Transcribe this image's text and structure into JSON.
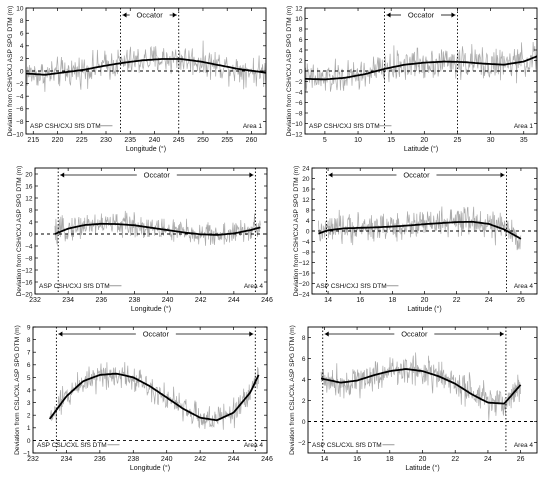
{
  "chart_data": [
    {
      "type": "line",
      "panel": "top-left",
      "ylabel": "Deviation from CSH/CXJ ASP SPG DTM (m)",
      "xlabel": "Longitude (°)",
      "xlim": [
        213.5,
        263
      ],
      "ylim": [
        -10,
        10
      ],
      "xticks": [
        215,
        220,
        225,
        230,
        235,
        240,
        245,
        250,
        255,
        260
      ],
      "yticks": [
        -10,
        -8,
        -6,
        -4,
        -2,
        0,
        2,
        4,
        6,
        8,
        10
      ],
      "occator": {
        "label": "Occator",
        "start": 233,
        "end": 245
      },
      "area_label": "Area 1",
      "series": [
        {
          "name": "ASP CSH/CXJ SfS DTM",
          "color": "#aaaaaa",
          "x": [
            213.5,
            217.5,
            221.5,
            225.5,
            229.5,
            233.5,
            237.5,
            241.5,
            245.5,
            249.5,
            253.5,
            257.5,
            261.5,
            263
          ],
          "y": [
            -0.4,
            -0.6,
            -0.2,
            0.2,
            0.8,
            1.3,
            1.7,
            1.9,
            1.9,
            1.5,
            0.9,
            0.3,
            -0.1,
            -0.3
          ],
          "noise_amplitude": 3.5
        },
        {
          "color": "#000000",
          "style": "fit",
          "x": [
            213.5,
            217.5,
            221.5,
            225.5,
            229.5,
            233.5,
            237.5,
            241.5,
            245.5,
            249.5,
            253.5,
            257.5,
            261.5,
            263
          ],
          "y": [
            -0.4,
            -0.6,
            -0.2,
            0.2,
            0.8,
            1.3,
            1.7,
            1.9,
            1.9,
            1.5,
            0.9,
            0.3,
            -0.1,
            -0.3
          ]
        }
      ]
    },
    {
      "type": "line",
      "panel": "top-right",
      "ylabel": "Deviation from CSH/CXJ ASP SPG DTM (m)",
      "xlabel": "Latitude (°)",
      "xlim": [
        2,
        37
      ],
      "ylim": [
        -12,
        12
      ],
      "xticks": [
        5,
        10,
        15,
        20,
        25,
        30,
        35
      ],
      "yticks": [
        -12,
        -10,
        -8,
        -6,
        -4,
        -2,
        0,
        2,
        4,
        6,
        8,
        10,
        12
      ],
      "occator": {
        "label": "Occator",
        "start": 14,
        "end": 25
      },
      "area_label": "Area 1",
      "series": [
        {
          "name": "ASP CSH/CXJ SfS DTM",
          "color": "#aaaaaa",
          "x": [
            2,
            5,
            8,
            11,
            14,
            17,
            20,
            23,
            26,
            29,
            32,
            35,
            37
          ],
          "y": [
            -1.5,
            -1.6,
            -1.3,
            -0.6,
            0.4,
            1.2,
            1.6,
            1.8,
            1.7,
            1.4,
            1.2,
            1.8,
            2.8
          ],
          "noise_amplitude": 4.5
        },
        {
          "color": "#000000",
          "style": "fit",
          "x": [
            2,
            5,
            8,
            11,
            14,
            17,
            20,
            23,
            26,
            29,
            32,
            35,
            37
          ],
          "y": [
            -1.5,
            -1.6,
            -1.3,
            -0.6,
            0.4,
            1.2,
            1.6,
            1.8,
            1.7,
            1.4,
            1.2,
            1.8,
            2.8
          ]
        }
      ]
    },
    {
      "type": "line",
      "panel": "middle-left",
      "ylabel": "Deviation from CSH/CXJ ASP SPG DTM (m)",
      "xlabel": "Longitude (°)",
      "xlim": [
        232,
        246
      ],
      "ylim": [
        -20,
        22
      ],
      "xticks": [
        232,
        234,
        236,
        238,
        240,
        242,
        244,
        246
      ],
      "yticks": [
        -20,
        -16,
        -12,
        -8,
        -4,
        0,
        4,
        8,
        12,
        16,
        20
      ],
      "occator": {
        "label": "Occator",
        "start": 233.4,
        "end": 245.3
      },
      "area_label": "Area 4",
      "series": [
        {
          "name": "ASP CSH/CXJ SfS DTM",
          "color": "#aaaaaa",
          "x": [
            233.2,
            234,
            235,
            236,
            237,
            238,
            239,
            240,
            241,
            242,
            243,
            244,
            245,
            245.6
          ],
          "y": [
            0,
            1.8,
            3.0,
            3.4,
            3.3,
            2.9,
            2.1,
            1.3,
            0.5,
            -0.1,
            -0.3,
            0.2,
            1.3,
            2.2
          ],
          "noise_amplitude": 6
        },
        {
          "color": "#000000",
          "style": "fit",
          "x": [
            233.2,
            234,
            235,
            236,
            237,
            238,
            239,
            240,
            241,
            242,
            243,
            244,
            245,
            245.6
          ],
          "y": [
            0,
            1.8,
            3.0,
            3.4,
            3.3,
            2.9,
            2.1,
            1.3,
            0.5,
            -0.1,
            -0.3,
            0.2,
            1.3,
            2.2
          ]
        }
      ]
    },
    {
      "type": "line",
      "panel": "middle-right",
      "ylabel": "Deviation from CSH/CXJ ASP SPG DTM (m)",
      "xlabel": "Latitude (°)",
      "xlim": [
        13,
        27
      ],
      "ylim": [
        -24,
        24
      ],
      "xticks": [
        14,
        16,
        18,
        20,
        22,
        24,
        26
      ],
      "yticks": [
        -24,
        -20,
        -16,
        -12,
        -8,
        -4,
        0,
        4,
        8,
        12,
        16,
        20,
        24
      ],
      "occator": {
        "label": "Occator",
        "start": 13.9,
        "end": 25.1
      },
      "area_label": "Area 4",
      "series": [
        {
          "name": "ASP CSH/CXJ SfS DTM",
          "color": "#aaaaaa",
          "x": [
            13.4,
            14,
            15,
            16,
            17,
            18,
            19,
            20,
            21,
            22,
            23,
            24,
            25,
            26
          ],
          "y": [
            -1,
            0.3,
            1.0,
            1.2,
            1.4,
            1.7,
            2.1,
            2.6,
            3.0,
            3.4,
            3.5,
            2.7,
            0.5,
            -3.0
          ],
          "noise_amplitude": 8
        },
        {
          "color": "#000000",
          "style": "fit",
          "x": [
            13.4,
            14,
            15,
            16,
            17,
            18,
            19,
            20,
            21,
            22,
            23,
            24,
            25,
            26
          ],
          "y": [
            -1,
            0.3,
            1.0,
            1.2,
            1.4,
            1.7,
            2.1,
            2.6,
            3.0,
            3.4,
            3.5,
            2.7,
            0.5,
            -3.0
          ]
        }
      ]
    },
    {
      "type": "line",
      "panel": "bottom-left",
      "ylabel": "Deviation from CSL/CXL ASP SPG DTM (m)",
      "xlabel": "Longitude (°)",
      "xlim": [
        232,
        246
      ],
      "ylim": [
        -1,
        9
      ],
      "xticks": [
        232,
        234,
        236,
        238,
        240,
        242,
        244,
        246
      ],
      "yticks": [
        -1,
        0,
        1,
        2,
        3,
        4,
        5,
        6,
        7,
        8,
        9
      ],
      "occator": {
        "label": "Occator",
        "start": 233.4,
        "end": 245.3
      },
      "area_label": "Area 4",
      "series": [
        {
          "name": "ASP CSL/CXL SfS DTM",
          "color": "#aaaaaa",
          "x": [
            233,
            234,
            235,
            236,
            237,
            238,
            239,
            240,
            241,
            242,
            243,
            244,
            245,
            245.5
          ],
          "y": [
            1.7,
            3.5,
            4.7,
            5.2,
            5.3,
            5.0,
            4.3,
            3.4,
            2.5,
            1.8,
            1.6,
            2.2,
            3.8,
            5.2
          ],
          "noise_amplitude": 1.6
        },
        {
          "color": "#000000",
          "style": "fit",
          "x": [
            233,
            234,
            235,
            236,
            237,
            238,
            239,
            240,
            241,
            242,
            243,
            244,
            245,
            245.5
          ],
          "y": [
            1.7,
            3.5,
            4.7,
            5.2,
            5.3,
            5.0,
            4.3,
            3.4,
            2.5,
            1.8,
            1.6,
            2.2,
            3.8,
            5.2
          ]
        }
      ]
    },
    {
      "type": "line",
      "panel": "bottom-right",
      "ylabel": "Deviation from CSL/CXL ASP SPG DTM (m)",
      "xlabel": "Latitude (°)",
      "xlim": [
        13,
        27
      ],
      "ylim": [
        -3,
        9
      ],
      "xticks": [
        14,
        16,
        18,
        20,
        22,
        24,
        26
      ],
      "yticks": [
        -2,
        0,
        2,
        4,
        6,
        8
      ],
      "occator": {
        "label": "Occator",
        "start": 13.9,
        "end": 25.1
      },
      "area_label": "Area 4",
      "series": [
        {
          "name": "ASP CSL/CXL SfS DTM",
          "color": "#aaaaaa",
          "x": [
            13.8,
            15,
            16,
            17,
            18,
            19,
            20,
            21,
            22,
            23,
            24,
            25,
            26
          ],
          "y": [
            4.1,
            3.7,
            3.9,
            4.4,
            4.8,
            5.0,
            4.8,
            4.3,
            3.6,
            2.6,
            1.8,
            1.7,
            3.5
          ],
          "noise_amplitude": 2.2
        },
        {
          "color": "#000000",
          "style": "fit",
          "x": [
            13.8,
            15,
            16,
            17,
            18,
            19,
            20,
            21,
            22,
            23,
            24,
            25,
            26
          ],
          "y": [
            4.1,
            3.7,
            3.9,
            4.4,
            4.8,
            5.0,
            4.8,
            4.3,
            3.6,
            2.6,
            1.8,
            1.7,
            3.5
          ]
        }
      ]
    }
  ]
}
